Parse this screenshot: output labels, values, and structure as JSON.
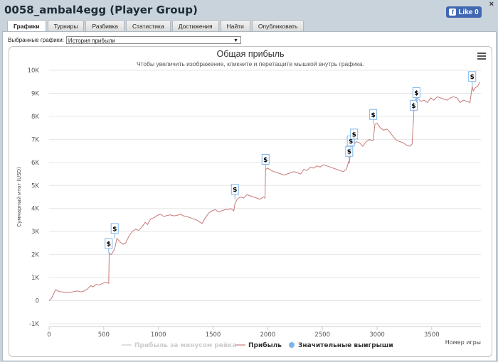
{
  "window": {
    "title": "0058_ambal4egg (Player Group)",
    "close_label": "×"
  },
  "facebook": {
    "label": "Like 0",
    "icon": "f"
  },
  "tabs": [
    {
      "label": "Графики",
      "active": true
    },
    {
      "label": "Турниры"
    },
    {
      "label": "Разбивка"
    },
    {
      "label": "Статистика"
    },
    {
      "label": "Достижения"
    },
    {
      "label": "Найти"
    },
    {
      "label": "Опубликовать"
    }
  ],
  "selector": {
    "label": "Выбранные графики:",
    "value": "История прибыли"
  },
  "chart_data": {
    "type": "line",
    "title": "Общая прибыль",
    "subtitle": "Чтобы увеличить изображение, кликните и перетащите мышкой внутрь графика.",
    "xlabel": "Номер игры",
    "ylabel": "Суммарный итог (USD)",
    "xlim": [
      0,
      3950
    ],
    "ylim": [
      -1000,
      10000
    ],
    "x_ticks": [
      "0",
      "500",
      "1000",
      "1500",
      "2000",
      "2500",
      "3000",
      "3500"
    ],
    "y_ticks": [
      "10K",
      "9K",
      "8K",
      "7K",
      "6K",
      "5K",
      "4K",
      "3K",
      "2K",
      "1K",
      "0",
      "-1K"
    ],
    "legend_position": "bottom",
    "series": [
      {
        "name": "Прибыль за минусом рейка",
        "color": "#cccccc",
        "visible": false,
        "x": [],
        "values": []
      },
      {
        "name": "Прибыль",
        "color": "#c87a7a",
        "x": [
          0,
          25,
          60,
          90,
          120,
          150,
          180,
          200,
          230,
          260,
          290,
          320,
          350,
          380,
          400,
          430,
          460,
          490,
          520,
          545,
          550,
          570,
          600,
          620,
          640,
          660,
          680,
          700,
          730,
          760,
          790,
          820,
          850,
          880,
          900,
          930,
          960,
          990,
          1020,
          1050,
          1080,
          1110,
          1140,
          1170,
          1200,
          1230,
          1260,
          1290,
          1320,
          1350,
          1380,
          1400,
          1430,
          1460,
          1490,
          1520,
          1550,
          1580,
          1610,
          1640,
          1660,
          1690,
          1700,
          1720,
          1750,
          1780,
          1810,
          1840,
          1870,
          1900,
          1930,
          1960,
          1975,
          1980,
          2000,
          2030,
          2060,
          2090,
          2120,
          2150,
          2180,
          2210,
          2240,
          2270,
          2300,
          2330,
          2360,
          2390,
          2420,
          2450,
          2480,
          2510,
          2540,
          2570,
          2600,
          2630,
          2660,
          2690,
          2720,
          2740,
          2745,
          2760,
          2780,
          2790,
          2810,
          2840,
          2870,
          2900,
          2930,
          2950,
          2965,
          2980,
          3000,
          3030,
          3060,
          3090,
          3120,
          3150,
          3180,
          3210,
          3240,
          3270,
          3300,
          3320,
          3335,
          3340,
          3360,
          3380,
          3400,
          3430,
          3460,
          3490,
          3520,
          3550,
          3580,
          3610,
          3640,
          3670,
          3700,
          3730,
          3760,
          3790,
          3820,
          3850,
          3870,
          3880,
          3900,
          3920,
          3940
        ],
        "values": [
          0,
          120,
          480,
          400,
          380,
          350,
          370,
          360,
          400,
          420,
          380,
          420,
          500,
          650,
          600,
          700,
          680,
          750,
          800,
          750,
          2050,
          2000,
          2250,
          2700,
          2600,
          2500,
          2450,
          2500,
          2800,
          3000,
          3100,
          3050,
          3200,
          3400,
          3300,
          3550,
          3600,
          3700,
          3750,
          3650,
          3700,
          3720,
          3680,
          3700,
          3750,
          3680,
          3650,
          3600,
          3550,
          3500,
          3400,
          3350,
          3600,
          3800,
          3900,
          3950,
          3850,
          3900,
          3950,
          3950,
          4000,
          3900,
          4200,
          4400,
          4500,
          4450,
          4600,
          4550,
          4500,
          4450,
          4400,
          4500,
          4450,
          5700,
          5750,
          5650,
          5600,
          5550,
          5500,
          5450,
          5500,
          5550,
          5600,
          5550,
          5500,
          5700,
          5650,
          5800,
          5750,
          5850,
          5800,
          5900,
          5850,
          5800,
          5750,
          5700,
          5650,
          5600,
          5700,
          6050,
          5950,
          6500,
          6700,
          6800,
          6900,
          6850,
          6700,
          6900,
          7000,
          6950,
          6950,
          7650,
          7700,
          7500,
          7400,
          7450,
          7300,
          7100,
          6950,
          6900,
          6850,
          6750,
          6700,
          6800,
          8050,
          8600,
          8800,
          8750,
          8650,
          8700,
          8600,
          8800,
          8700,
          8850,
          8800,
          8750,
          8700,
          8800,
          8850,
          8800,
          8600,
          8700,
          8650,
          8600,
          9300,
          9100,
          9250,
          9300,
          9500
        ]
      },
      {
        "name": "Значительные выигрыши",
        "color": "#7cb5ec",
        "marker": "$",
        "x": [
          545,
          600,
          1700,
          1980,
          2745,
          2760,
          2790,
          2965,
          3335,
          3360,
          3870
        ],
        "values": [
          2050,
          2700,
          4400,
          5700,
          6050,
          6500,
          6800,
          7650,
          8050,
          8600,
          9300
        ]
      }
    ]
  }
}
